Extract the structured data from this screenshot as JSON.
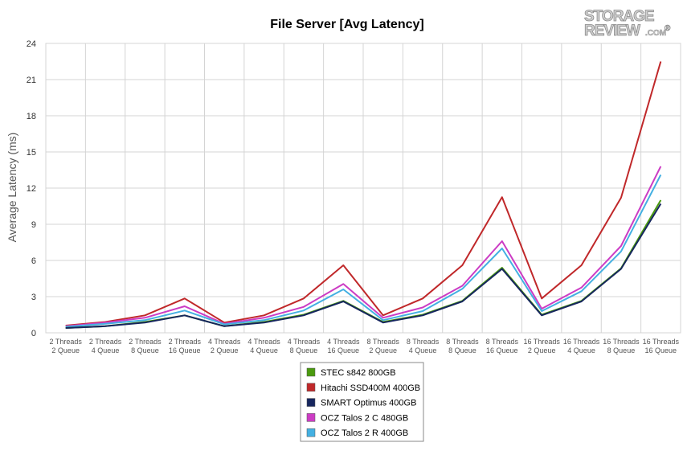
{
  "logo": {
    "top": "STORAGE",
    "bottom": "REVIEW",
    "suffix": ".COM",
    "mark": "®"
  },
  "chart_data": {
    "type": "line",
    "title": "File Server [Avg Latency]",
    "xlabel": "",
    "ylabel": "Average Latency (ms)",
    "ylim": [
      0,
      24
    ],
    "yticks": [
      0,
      3,
      6,
      9,
      12,
      15,
      18,
      21,
      24
    ],
    "grid": true,
    "legend_position": "bottom",
    "categories": [
      [
        "2 Threads",
        "2 Queue"
      ],
      [
        "2 Threads",
        "4 Queue"
      ],
      [
        "2 Threads",
        "8 Queue"
      ],
      [
        "2 Threads",
        "16 Queue"
      ],
      [
        "4 Threads",
        "2 Queue"
      ],
      [
        "4 Threads",
        "4 Queue"
      ],
      [
        "4 Threads",
        "8 Queue"
      ],
      [
        "4 Threads",
        "16 Queue"
      ],
      [
        "8 Threads",
        "2 Queue"
      ],
      [
        "8 Threads",
        "4 Queue"
      ],
      [
        "8 Threads",
        "8 Queue"
      ],
      [
        "8 Threads",
        "16 Queue"
      ],
      [
        "16 Threads",
        "2 Queue"
      ],
      [
        "16 Threads",
        "4 Queue"
      ],
      [
        "16 Threads",
        "8 Queue"
      ],
      [
        "16 Threads",
        "16 Queue"
      ]
    ],
    "series": [
      {
        "name": "STEC s842 800GB",
        "color": "#4a9a0e",
        "values": [
          0.4,
          0.55,
          0.9,
          1.45,
          0.55,
          0.9,
          1.5,
          2.65,
          0.9,
          1.5,
          2.65,
          5.4,
          1.5,
          2.65,
          5.35,
          11.0
        ]
      },
      {
        "name": "Hitachi SSD400M 400GB",
        "color": "#c0282a",
        "values": [
          0.6,
          0.9,
          1.45,
          2.85,
          0.85,
          1.45,
          2.85,
          5.6,
          1.45,
          2.85,
          5.6,
          11.25,
          2.85,
          5.6,
          11.2,
          22.5
        ]
      },
      {
        "name": "SMART Optimus 400GB",
        "color": "#16265e",
        "values": [
          0.4,
          0.55,
          0.85,
          1.45,
          0.55,
          0.85,
          1.45,
          2.6,
          0.85,
          1.45,
          2.6,
          5.3,
          1.45,
          2.6,
          5.3,
          10.7
        ]
      },
      {
        "name": "OCZ Talos 2 C 480GB",
        "color": "#cc3cc4",
        "values": [
          0.55,
          0.85,
          1.25,
          2.2,
          0.75,
          1.25,
          2.15,
          4.05,
          1.25,
          2.1,
          3.9,
          7.6,
          2.0,
          3.75,
          7.2,
          13.8
        ]
      },
      {
        "name": "OCZ Talos 2 R 400GB",
        "color": "#44b0e2",
        "values": [
          0.5,
          0.75,
          1.05,
          1.85,
          0.7,
          1.05,
          1.85,
          3.6,
          1.05,
          1.8,
          3.65,
          7.0,
          1.8,
          3.45,
          6.75,
          13.1
        ]
      }
    ]
  }
}
